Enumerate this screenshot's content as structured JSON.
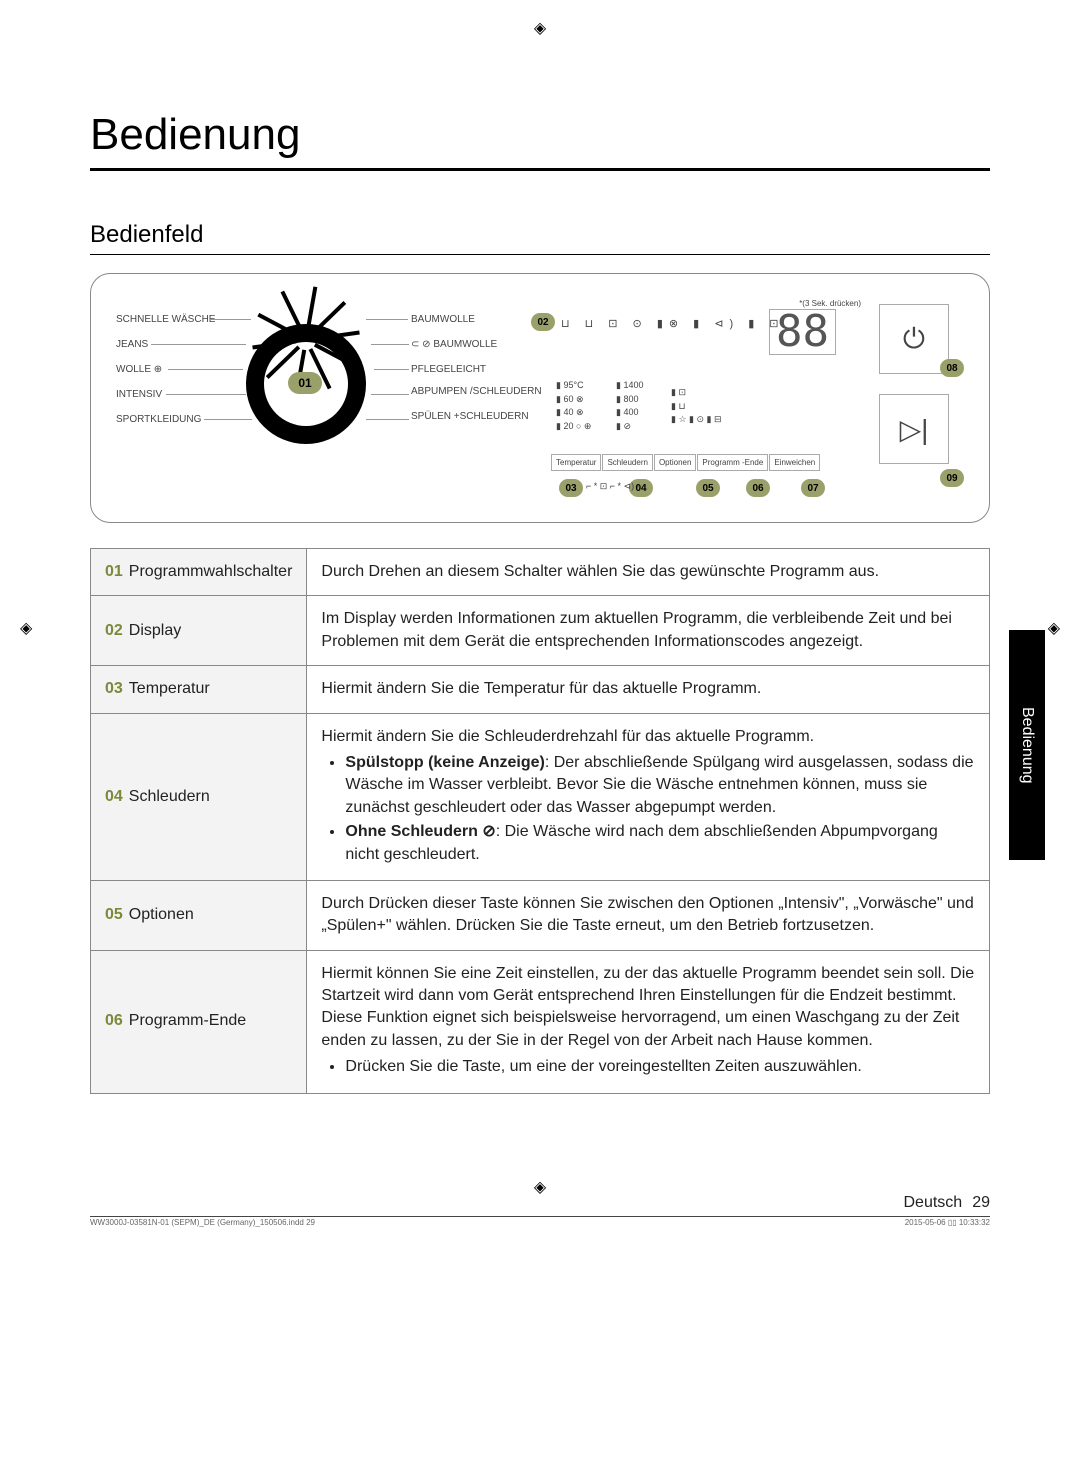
{
  "page": {
    "title": "Bedienung",
    "section": "Bedienfeld",
    "side_tab": "Bedienung",
    "language": "Deutsch",
    "page_number": "29",
    "footer_left": "WW3000J-03581N-01 (SEPM)_DE (Germany)_150506.indd   29",
    "footer_right": "2015-05-06   ▯▯ 10:33:32"
  },
  "colors": {
    "badge_bg": "#9aa06a",
    "num_color": "#7a8a3a",
    "border_gray": "#888888",
    "row_bg": "#f3f3f3",
    "text": "#222222"
  },
  "panel": {
    "dial_badge": "01",
    "programs_left": [
      "SCHNELLE WÄSCHE",
      "JEANS",
      "WOLLE ⊕",
      "INTENSIV",
      "SPORTKLEIDUNG"
    ],
    "programs_right": [
      "BAUMWOLLE",
      "⊂ ⊘ BAUMWOLLE",
      "PFLEGELEICHT",
      "ABPUMPEN /SCHLEUDERN",
      "SPÜLEN +SCHLEUDERN"
    ],
    "press_note": "*(3 Sek. drücken)",
    "display_badges": {
      "b02": "02",
      "b03": "03",
      "b04": "04",
      "b05": "05",
      "b06": "06",
      "b07": "07",
      "b08": "08",
      "b09": "09"
    },
    "big_digits": "88",
    "temp_col": [
      "▮ 95°C",
      "▮ 60 ⊗",
      "▮ 40 ⊗",
      "▮ 20 ○ ⊕"
    ],
    "spin_col": [
      "▮ 1400",
      "▮ 800",
      "▮ 400",
      "▮ ⊘"
    ],
    "opt_icons": [
      "▮ ⊡",
      "▮ ⊔",
      "▮ ☆     ▮ ⊙     ▮ ⊟"
    ],
    "top_icons": "⊔  ⊔  ⊡  ⊙       ▮⊗  ▮ ⊲)     ▮ ⊡",
    "button_labels": [
      "Temperatur",
      "Schleudern",
      "Optionen",
      "Programm -Ende",
      "Einweichen"
    ],
    "sub_icons": "⌐ * ⊡  ⌐ * ⊲) ⌐"
  },
  "table": {
    "rows": [
      {
        "num": "01",
        "name": "Programmwahlschalter",
        "desc": "Durch Drehen an diesem Schalter wählen Sie das gewünschte Programm aus."
      },
      {
        "num": "02",
        "name": "Display",
        "desc": "Im Display werden Informationen zum aktuellen Programm, die verbleibende Zeit und bei Problemen mit dem Gerät die entsprechenden Informationscodes angezeigt."
      },
      {
        "num": "03",
        "name": "Temperatur",
        "desc": "Hiermit ändern Sie die Temperatur für das aktuelle Programm."
      },
      {
        "num": "04",
        "name": "Schleudern",
        "desc_intro": "Hiermit ändern Sie die Schleuderdrehzahl für das aktuelle Programm.",
        "bullets": [
          {
            "bold": "Spülstopp (keine Anzeige)",
            "rest": ": Der abschließende Spülgang wird ausgelassen, sodass die Wäsche im Wasser verbleibt. Bevor Sie die Wäsche entnehmen können, muss sie zunächst geschleudert oder das Wasser abgepumpt werden."
          },
          {
            "bold": "Ohne Schleudern ⊘",
            "rest": ": Die Wäsche wird nach dem abschließenden Abpumpvorgang nicht geschleudert."
          }
        ]
      },
      {
        "num": "05",
        "name": "Optionen",
        "desc": "Durch Drücken dieser Taste können Sie zwischen den Optionen „Intensiv\", „Vorwäsche\" und „Spülen+\" wählen. Drücken Sie die Taste erneut, um den Betrieb fortzusetzen."
      },
      {
        "num": "06",
        "name": "Programm-Ende",
        "desc_intro": "Hiermit können Sie eine Zeit einstellen, zu der das aktuelle Programm beendet sein soll. Die Startzeit wird dann vom Gerät entsprechend Ihren Einstellungen für die Endzeit bestimmt. Diese Funktion eignet sich beispielsweise hervorragend, um einen Waschgang zu der Zeit enden zu lassen, zu der Sie in der Regel von der Arbeit nach Hause kommen.",
        "bullets": [
          {
            "bold": "",
            "rest": "Drücken Sie die Taste, um eine der voreingestellten Zeiten auszuwählen."
          }
        ]
      }
    ]
  }
}
